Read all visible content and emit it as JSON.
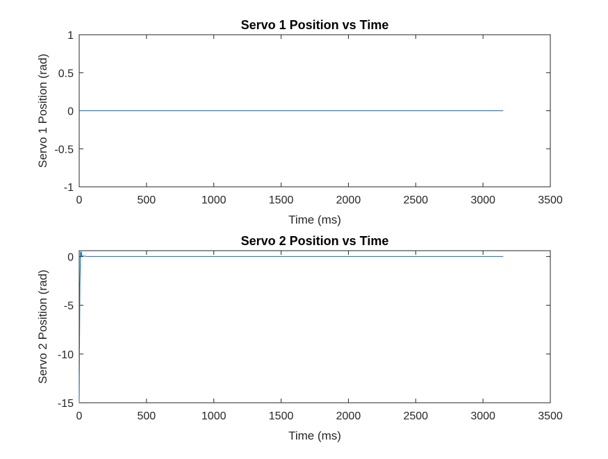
{
  "figure": {
    "background": "#ffffff",
    "axis_color": "#262626",
    "line_color": "#0072bd"
  },
  "chart_data": [
    {
      "type": "line",
      "title": "Servo 1 Position vs Time",
      "xlabel": "Time (ms)",
      "ylabel": "Servo 1 Position (rad)",
      "xlim": [
        0,
        3500
      ],
      "ylim": [
        -1,
        1
      ],
      "xticks": [
        0,
        500,
        1000,
        1500,
        2000,
        2500,
        3000,
        3500
      ],
      "yticks": [
        -1,
        -0.5,
        0,
        0.5,
        1
      ],
      "xtick_labels": [
        "0",
        "500",
        "1000",
        "1500",
        "2000",
        "2500",
        "3000",
        "3500"
      ],
      "ytick_labels": [
        "-1",
        "-0.5",
        "0",
        "0.5",
        "1"
      ],
      "grid": false,
      "series": [
        {
          "color": "#0072bd",
          "x": [
            0,
            3150
          ],
          "y": [
            0,
            0
          ]
        }
      ]
    },
    {
      "type": "line",
      "title": "Servo 2 Position vs Time",
      "xlabel": "Time (ms)",
      "ylabel": "Servo 2 Position (rad)",
      "xlim": [
        0,
        3500
      ],
      "ylim": [
        -15,
        0.6
      ],
      "xticks": [
        0,
        500,
        1000,
        1500,
        2000,
        2500,
        3000,
        3500
      ],
      "yticks": [
        -15,
        -10,
        -5,
        0
      ],
      "xtick_labels": [
        "0",
        "500",
        "1000",
        "1500",
        "2000",
        "2500",
        "3000",
        "3500"
      ],
      "ytick_labels": [
        "-15",
        "-10",
        "-5",
        "0"
      ],
      "grid": false,
      "series": [
        {
          "color": "#0072bd",
          "x": [
            0,
            5,
            10,
            12,
            15,
            20,
            30,
            60,
            3150
          ],
          "y": [
            -15,
            -3,
            0.5,
            -0.1,
            0.5,
            0.05,
            0.05,
            0.0,
            0.0
          ]
        }
      ]
    }
  ]
}
